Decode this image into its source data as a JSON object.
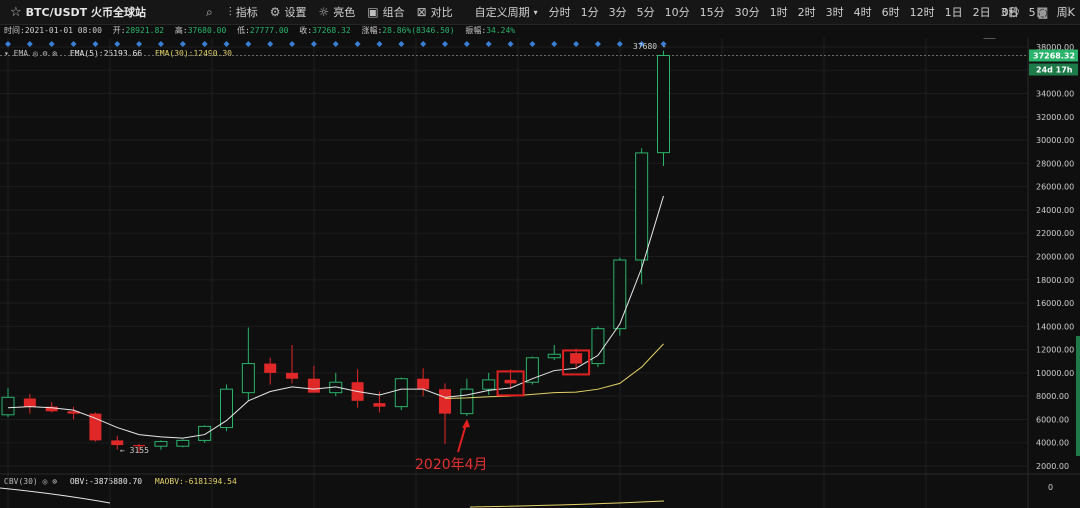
{
  "toolbar": {
    "symbol": "BTC/USDT 火币全球站",
    "tools": [
      {
        "icon": "chart-indicator-icon",
        "label": "指标"
      },
      {
        "icon": "gear-icon",
        "label": "设置"
      },
      {
        "icon": "sun-icon",
        "label": "亮色"
      },
      {
        "icon": "combine-icon",
        "label": "组合"
      },
      {
        "icon": "compare-icon",
        "label": "对比"
      }
    ],
    "custom_period": "自定义周期",
    "periods": [
      "分时",
      "1分",
      "3分",
      "5分",
      "10分",
      "15分",
      "30分",
      "1时",
      "2时",
      "3时",
      "4时",
      "6时",
      "12时",
      "1日",
      "2日",
      "3日",
      "5日",
      "周K",
      "月K"
    ],
    "active_period": "月K",
    "timer": "0秒"
  },
  "info": {
    "time_label": "时间:",
    "time": "2021-01-01 08:00",
    "open_label": "开:",
    "open": "28921.82",
    "high_label": "高:",
    "high": "37680.00",
    "low_label": "低:",
    "low": "27777.00",
    "close_label": "收:",
    "close": "37268.32",
    "change_label": "涨幅:",
    "change": "28.86%(8346.50)",
    "amp_label": "振幅:",
    "amp": "34.24%"
  },
  "ema": {
    "name": "EMA",
    "ema5": "EMA(5):25193.66",
    "ema30": "EMA(30):12490.30"
  },
  "obv": {
    "name": "OBV(30)",
    "obv": "OBV:-3875880.70",
    "maobv": "MAOBV:-6181394.54"
  },
  "price_axis": {
    "ticks": [
      "38000.00",
      "36000.00",
      "34000.00",
      "32000.00",
      "30000.00",
      "28000.00",
      "26000.00",
      "24000.00",
      "22000.00",
      "20000.00",
      "18000.00",
      "16000.00",
      "14000.00",
      "12000.00",
      "10000.00",
      "8000.00",
      "6000.00",
      "4000.00",
      "2000.00"
    ],
    "last_price": "37268.32",
    "countdown": "24d 17h",
    "obv_zero": "0"
  },
  "labels": {
    "low_marker": "← 3155",
    "high_marker": "37680 -",
    "annotation": "2020年4月"
  },
  "colors": {
    "up": "#2ab36b",
    "down": "#e02828",
    "ema5": "#e8e8e8",
    "ema30": "#e3d468",
    "active_tab": "#4aa0ff",
    "highlight_box": "#e02020"
  },
  "chart_data": {
    "type": "candlestick",
    "y_range": [
      1000,
      38500
    ],
    "candles": [
      {
        "o": 6400,
        "h": 8700,
        "l": 6200,
        "c": 7900
      },
      {
        "o": 7800,
        "h": 8200,
        "l": 6500,
        "c": 7100
      },
      {
        "o": 7100,
        "h": 7500,
        "l": 6600,
        "c": 6700
      },
      {
        "o": 6700,
        "h": 7100,
        "l": 6000,
        "c": 6500
      },
      {
        "o": 6500,
        "h": 6600,
        "l": 4100,
        "c": 4200
      },
      {
        "o": 4200,
        "h": 4600,
        "l": 3400,
        "c": 3800
      },
      {
        "o": 3800,
        "h": 3900,
        "l": 3155,
        "c": 3700
      },
      {
        "o": 3700,
        "h": 4200,
        "l": 3400,
        "c": 4100
      },
      {
        "o": 3700,
        "h": 4300,
        "l": 3600,
        "c": 4200
      },
      {
        "o": 4200,
        "h": 5500,
        "l": 4000,
        "c": 5400
      },
      {
        "o": 5300,
        "h": 9000,
        "l": 5000,
        "c": 8600
      },
      {
        "o": 8300,
        "h": 13900,
        "l": 7600,
        "c": 10800
      },
      {
        "o": 10800,
        "h": 11300,
        "l": 9000,
        "c": 10000
      },
      {
        "o": 10000,
        "h": 12400,
        "l": 9100,
        "c": 9500
      },
      {
        "o": 9500,
        "h": 10600,
        "l": 8400,
        "c": 8300
      },
      {
        "o": 8300,
        "h": 10000,
        "l": 8000,
        "c": 9200
      },
      {
        "o": 9200,
        "h": 10300,
        "l": 7000,
        "c": 7600
      },
      {
        "o": 7400,
        "h": 8400,
        "l": 6600,
        "c": 7100
      },
      {
        "o": 7100,
        "h": 9600,
        "l": 6800,
        "c": 9500
      },
      {
        "o": 9500,
        "h": 10400,
        "l": 8000,
        "c": 8600
      },
      {
        "o": 8600,
        "h": 9100,
        "l": 3900,
        "c": 6500
      },
      {
        "o": 6500,
        "h": 9500,
        "l": 6300,
        "c": 8600
      },
      {
        "o": 8600,
        "h": 10000,
        "l": 8100,
        "c": 9400
      },
      {
        "o": 9400,
        "h": 10300,
        "l": 8600,
        "c": 9100
      },
      {
        "o": 9200,
        "h": 11400,
        "l": 9000,
        "c": 11300
      },
      {
        "o": 11300,
        "h": 12400,
        "l": 11100,
        "c": 11600
      },
      {
        "o": 11700,
        "h": 12100,
        "l": 10300,
        "c": 10800
      },
      {
        "o": 10800,
        "h": 14000,
        "l": 10500,
        "c": 13800
      },
      {
        "o": 13800,
        "h": 19900,
        "l": 13200,
        "c": 19700
      },
      {
        "o": 19700,
        "h": 29300,
        "l": 17600,
        "c": 28900
      },
      {
        "o": 28921.82,
        "h": 37680,
        "l": 27777,
        "c": 37268.32
      }
    ],
    "ema5": [
      7000,
      7100,
      7000,
      6800,
      6100,
      5300,
      4700,
      4500,
      4400,
      4700,
      5900,
      7600,
      8400,
      8800,
      8600,
      8800,
      8400,
      8100,
      8600,
      8600,
      7900,
      8100,
      8500,
      8700,
      9500,
      10200,
      10400,
      11500,
      14200,
      19000,
      25193.66
    ],
    "ema30": [
      null,
      null,
      null,
      null,
      null,
      null,
      null,
      null,
      null,
      null,
      null,
      null,
      null,
      null,
      null,
      null,
      null,
      null,
      null,
      null,
      7800,
      7850,
      7950,
      8000,
      8150,
      8300,
      8350,
      8600,
      9100,
      10500,
      12490.3
    ],
    "highlight_boxes": [
      23,
      26
    ]
  }
}
